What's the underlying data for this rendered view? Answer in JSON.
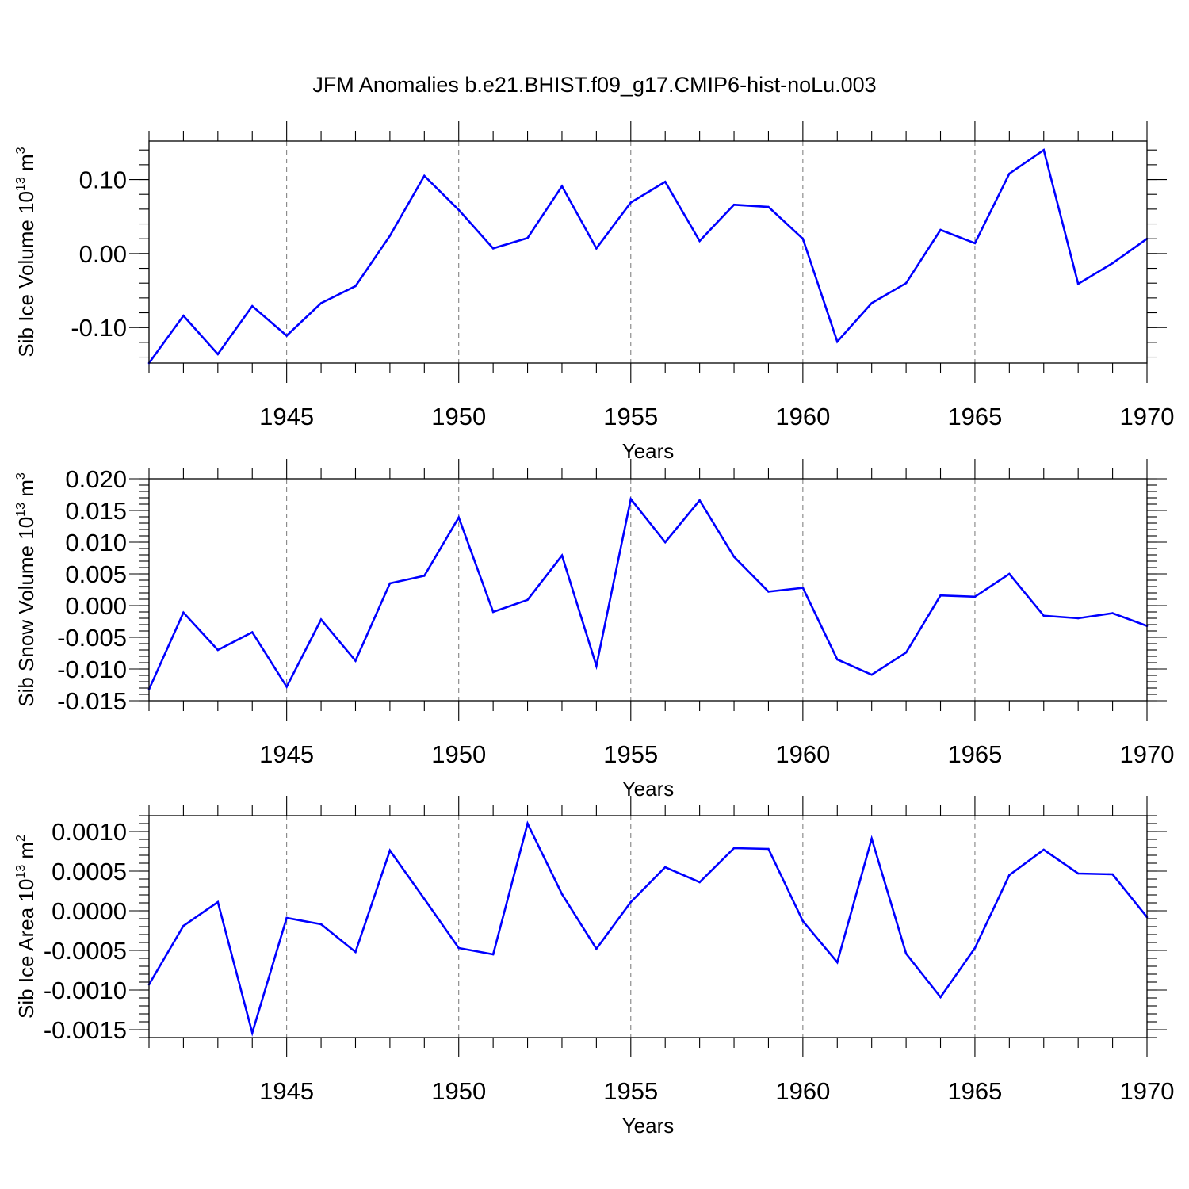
{
  "figure_title": "JFM Anomalies b.e21.BHIST.f09_g17.CMIP6-hist-noLu.003",
  "colors": {
    "line": "#0000ff",
    "grid": "#777777",
    "axes": "#000000"
  },
  "chart_data": [
    {
      "type": "line",
      "title": "",
      "ylabel": "Sib Ice Volume 10",
      "ylabel_sup1": "13",
      "ylabel_mid": " m",
      "ylabel_sup2": "3",
      "xlabel": "Years",
      "xlim": [
        1941,
        1970
      ],
      "ylim": [
        -0.148,
        0.152
      ],
      "x_ticks": [
        1945,
        1950,
        1955,
        1960,
        1965,
        1970
      ],
      "x_tick_labels": [
        "1945",
        "1950",
        "1955",
        "1960",
        "1965",
        "1970"
      ],
      "x_minor_step": 1,
      "y_ticks": [
        0.1,
        0.0,
        -0.1
      ],
      "y_tick_labels": [
        "0.10",
        "0.00",
        "-0.10"
      ],
      "y_minor_step": 0.02,
      "grid": "dashed vertical at major x ticks",
      "x": [
        1941,
        1942,
        1943,
        1944,
        1945,
        1946,
        1947,
        1948,
        1949,
        1950,
        1951,
        1952,
        1953,
        1954,
        1955,
        1956,
        1957,
        1958,
        1959,
        1960,
        1961,
        1962,
        1963,
        1964,
        1965,
        1966,
        1967,
        1968,
        1969,
        1970
      ],
      "series": [
        {
          "name": "Sib Ice Volume",
          "values": [
            -0.148,
            -0.084,
            -0.136,
            -0.071,
            -0.111,
            -0.067,
            -0.044,
            0.024,
            0.105,
            0.059,
            0.007,
            0.021,
            0.091,
            0.007,
            0.069,
            0.097,
            0.017,
            0.066,
            0.063,
            0.02,
            -0.119,
            -0.067,
            -0.04,
            0.032,
            0.014,
            0.108,
            0.14,
            -0.041,
            -0.013,
            0.02
          ]
        }
      ]
    },
    {
      "type": "line",
      "title": "",
      "ylabel": "Sib Snow Volume 10",
      "ylabel_sup1": "13",
      "ylabel_mid": " m",
      "ylabel_sup2": "3",
      "xlabel": "Years",
      "xlim": [
        1941,
        1970
      ],
      "ylim": [
        -0.015,
        0.02
      ],
      "x_ticks": [
        1945,
        1950,
        1955,
        1960,
        1965,
        1970
      ],
      "x_tick_labels": [
        "1945",
        "1950",
        "1955",
        "1960",
        "1965",
        "1970"
      ],
      "x_minor_step": 1,
      "y_ticks": [
        0.02,
        0.015,
        0.01,
        0.005,
        0.0,
        -0.005,
        -0.01,
        -0.015
      ],
      "y_tick_labels": [
        "0.020",
        "0.015",
        "0.010",
        "0.005",
        "0.000",
        "-0.005",
        "-0.010",
        "-0.015"
      ],
      "y_minor_step": 0.001,
      "grid": "dashed vertical at major x ticks",
      "x": [
        1941,
        1942,
        1943,
        1944,
        1945,
        1946,
        1947,
        1948,
        1949,
        1950,
        1951,
        1952,
        1953,
        1954,
        1955,
        1956,
        1957,
        1958,
        1959,
        1960,
        1961,
        1962,
        1963,
        1964,
        1965,
        1966,
        1967,
        1968,
        1969,
        1970
      ],
      "series": [
        {
          "name": "Sib Snow Volume",
          "values": [
            -0.0132,
            -0.0011,
            -0.007,
            -0.0042,
            -0.0128,
            -0.0022,
            -0.0087,
            0.0035,
            0.0047,
            0.0139,
            -0.001,
            0.0009,
            0.0079,
            -0.0095,
            0.0168,
            0.01,
            0.0166,
            0.0077,
            0.0022,
            0.0028,
            -0.0085,
            -0.0109,
            -0.0074,
            0.0016,
            0.0014,
            0.005,
            -0.0016,
            -0.002,
            -0.0012,
            -0.0032
          ]
        }
      ]
    },
    {
      "type": "line",
      "title": "",
      "ylabel": "Sib Ice Area 10",
      "ylabel_sup1": "13",
      "ylabel_mid": " m",
      "ylabel_sup2": "2",
      "xlabel": "Years",
      "xlim": [
        1941,
        1970
      ],
      "ylim": [
        -0.0016,
        0.0012
      ],
      "x_ticks": [
        1945,
        1950,
        1955,
        1960,
        1965,
        1970
      ],
      "x_tick_labels": [
        "1945",
        "1950",
        "1955",
        "1960",
        "1965",
        "1970"
      ],
      "x_minor_step": 1,
      "y_ticks": [
        0.001,
        0.0005,
        0.0,
        -0.0005,
        -0.001,
        -0.0015
      ],
      "y_tick_labels": [
        "0.0010",
        "0.0005",
        "0.0000",
        "-0.0005",
        "-0.0010",
        "-0.0015"
      ],
      "y_minor_step": 0.0001,
      "grid": "dashed vertical at major x ticks",
      "x": [
        1941,
        1942,
        1943,
        1944,
        1945,
        1946,
        1947,
        1948,
        1949,
        1950,
        1951,
        1952,
        1953,
        1954,
        1955,
        1956,
        1957,
        1958,
        1959,
        1960,
        1961,
        1962,
        1963,
        1964,
        1965,
        1966,
        1967,
        1968,
        1969,
        1970
      ],
      "series": [
        {
          "name": "Sib Ice Area",
          "values": [
            -0.00093,
            -0.00019,
            0.00011,
            -0.00154,
            -9e-05,
            -0.00017,
            -0.00052,
            0.00076,
            0.00015,
            -0.00047,
            -0.00055,
            0.0011,
            0.00021,
            -0.00048,
            0.00011,
            0.00055,
            0.00036,
            0.00079,
            0.00078,
            -0.00013,
            -0.00065,
            0.00091,
            -0.00054,
            -0.00109,
            -0.00047,
            0.00045,
            0.00077,
            0.00047,
            0.00046,
            -8e-05
          ]
        }
      ]
    }
  ]
}
